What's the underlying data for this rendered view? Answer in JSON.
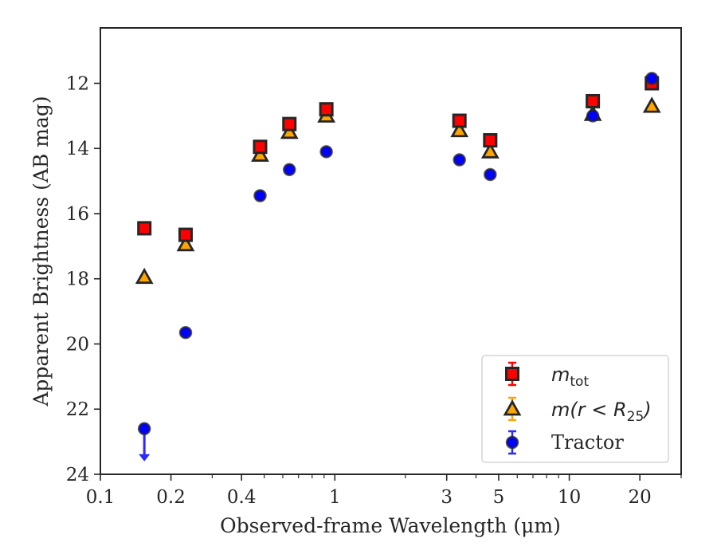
{
  "chart_data": {
    "type": "scatter",
    "xlabel": "Observed-frame Wavelength (μm)",
    "ylabel": "Apparent Brightness (AB mag)",
    "xscale": "log",
    "xlim": [
      0.1,
      30
    ],
    "ylim": [
      24,
      10.3
    ],
    "y_inverted": true,
    "x_ticks": [
      0.1,
      0.2,
      0.4,
      1,
      3,
      5,
      10,
      20
    ],
    "x_tick_labels": [
      "0.1",
      "0.2",
      "0.4",
      "1",
      "3",
      "5",
      "10",
      "20"
    ],
    "y_ticks": [
      12,
      14,
      16,
      18,
      20,
      22,
      24
    ],
    "y_tick_labels": [
      "12",
      "14",
      "16",
      "18",
      "20",
      "22",
      "24"
    ],
    "grid": false,
    "legend_position": "lower-right",
    "series": [
      {
        "name": "m_tot",
        "marker": "square",
        "color": "#ff0000",
        "edge_color": "#262626",
        "points": [
          {
            "x": 0.154,
            "y": 16.45
          },
          {
            "x": 0.231,
            "y": 16.65
          },
          {
            "x": 0.48,
            "y": 13.95
          },
          {
            "x": 0.64,
            "y": 13.25
          },
          {
            "x": 0.92,
            "y": 12.8
          },
          {
            "x": 3.4,
            "y": 13.15
          },
          {
            "x": 4.6,
            "y": 13.75
          },
          {
            "x": 12.6,
            "y": 12.55
          },
          {
            "x": 22.5,
            "y": 12.0
          }
        ]
      },
      {
        "name": "m(r < R_25)",
        "marker": "triangle",
        "color": "#ffa500",
        "edge_color": "#262626",
        "points": [
          {
            "x": 0.154,
            "y": 17.95
          },
          {
            "x": 0.231,
            "y": 16.95
          },
          {
            "x": 0.48,
            "y": 14.2
          },
          {
            "x": 0.64,
            "y": 13.5
          },
          {
            "x": 0.92,
            "y": 13.0
          },
          {
            "x": 3.4,
            "y": 13.45
          },
          {
            "x": 4.6,
            "y": 14.1
          },
          {
            "x": 12.6,
            "y": 12.95
          },
          {
            "x": 22.5,
            "y": 12.7
          }
        ]
      },
      {
        "name": "Tractor",
        "marker": "circle",
        "color": "#0000ff",
        "edge_color": "#262626",
        "points": [
          {
            "x": 0.154,
            "y": 22.6,
            "upper_limit": true
          },
          {
            "x": 0.231,
            "y": 19.65
          },
          {
            "x": 0.48,
            "y": 15.45
          },
          {
            "x": 0.64,
            "y": 14.65
          },
          {
            "x": 0.92,
            "y": 14.1
          },
          {
            "x": 3.4,
            "y": 14.35
          },
          {
            "x": 4.6,
            "y": 14.8
          },
          {
            "x": 12.6,
            "y": 13.0
          },
          {
            "x": 22.5,
            "y": 11.85
          }
        ]
      }
    ]
  }
}
